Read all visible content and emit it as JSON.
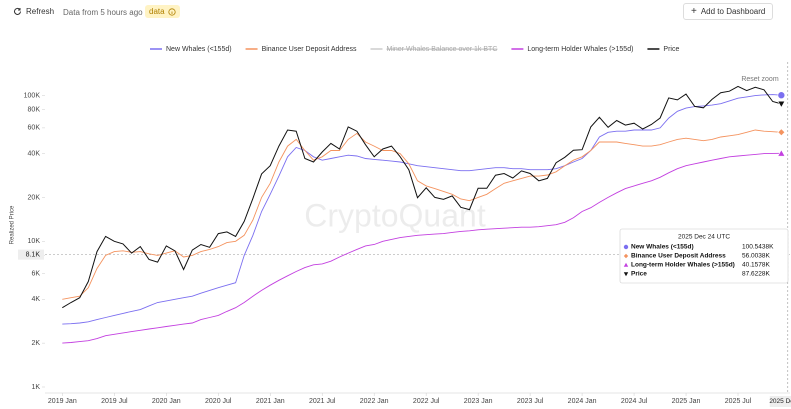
{
  "header": {
    "refresh": "Refresh",
    "status": "Data from 5 hours ago",
    "badge": "data",
    "button": "Add to Dashboard"
  },
  "chart_data": {
    "type": "line",
    "watermark": "CryptoQuant",
    "y_label": "Realized Price",
    "reset_zoom": "Reset zoom",
    "log_scale": true,
    "grid": false,
    "legend": "top",
    "x": [
      "2019 Jan",
      "2019 Feb",
      "2019 Mar",
      "2019 Apr",
      "2019 May",
      "2019 Jun",
      "2019 Jul",
      "2019 Aug",
      "2019 Sep",
      "2019 Oct",
      "2019 Nov",
      "2019 Dec",
      "2020 Jan",
      "2020 Feb",
      "2020 Mar",
      "2020 Apr",
      "2020 May",
      "2020 Jun",
      "2020 Jul",
      "2020 Aug",
      "2020 Sep",
      "2020 Oct",
      "2020 Nov",
      "2020 Dec",
      "2021 Jan",
      "2021 Feb",
      "2021 Mar",
      "2021 Apr",
      "2021 May",
      "2021 Jun",
      "2021 Jul",
      "2021 Aug",
      "2021 Sep",
      "2021 Oct",
      "2021 Nov",
      "2021 Dec",
      "2022 Jan",
      "2022 Feb",
      "2022 Mar",
      "2022 Apr",
      "2022 May",
      "2022 Jun",
      "2022 Jul",
      "2022 Aug",
      "2022 Sep",
      "2022 Oct",
      "2022 Nov",
      "2022 Dec",
      "2023 Jan",
      "2023 Feb",
      "2023 Mar",
      "2023 Apr",
      "2023 May",
      "2023 Jun",
      "2023 Jul",
      "2023 Aug",
      "2023 Sep",
      "2023 Oct",
      "2023 Nov",
      "2023 Dec",
      "2024 Jan",
      "2024 Feb",
      "2024 Mar",
      "2024 Apr",
      "2024 May",
      "2024 Jun",
      "2024 Jul",
      "2024 Aug",
      "2024 Sep",
      "2024 Oct",
      "2024 Nov",
      "2024 Dec",
      "2025 Jan",
      "2025 Feb",
      "2025 Mar",
      "2025 Apr",
      "2025 May",
      "2025 Jun",
      "2025 Jul",
      "2025 Aug",
      "2025 Sep",
      "2025 Oct",
      "2025 Nov",
      "2025 Dec"
    ],
    "xlim": [
      "2018 Nov",
      "2026 Jan"
    ],
    "xticks": [
      "2019 Jan",
      "2019 Jul",
      "2020 Jan",
      "2020 Jul",
      "2021 Jan",
      "2021 Jul",
      "2022 Jan",
      "2022 Jul",
      "2023 Jan",
      "2023 Jul",
      "2024 Jan",
      "2024 Jul",
      "2025 Jan",
      "2025 Jul"
    ],
    "ylim": [
      1000,
      170000
    ],
    "yticks": [
      {
        "value": 1000,
        "label": "1K"
      },
      {
        "value": 2000,
        "label": "2K"
      },
      {
        "value": 4000,
        "label": "4K"
      },
      {
        "value": 6000,
        "label": "6K"
      },
      {
        "value": 8000,
        "label": "8K"
      },
      {
        "value": 10000,
        "label": "10K"
      },
      {
        "value": 20000,
        "label": "20K"
      },
      {
        "value": 40000,
        "label": "40K"
      },
      {
        "value": 60000,
        "label": "60K"
      },
      {
        "value": 80000,
        "label": "80K"
      },
      {
        "value": 100000,
        "label": "100K"
      }
    ],
    "crosshair": {
      "y": {
        "value": 8100,
        "label": "8.1K"
      },
      "x": "2025 Dec 24"
    },
    "series": [
      {
        "name": "New Whales (<155d)",
        "color": "#7b6ff0",
        "marker": "circle",
        "values": [
          2700,
          2720,
          2750,
          2800,
          2900,
          3000,
          3100,
          3200,
          3300,
          3400,
          3600,
          3800,
          3900,
          4000,
          4100,
          4200,
          4400,
          4600,
          4800,
          5000,
          5200,
          8000,
          11000,
          16000,
          21000,
          28000,
          38000,
          44000,
          42000,
          38000,
          36000,
          37000,
          38000,
          39000,
          38500,
          37000,
          36500,
          36000,
          35500,
          35000,
          34000,
          33000,
          32500,
          32000,
          31500,
          31000,
          30500,
          30500,
          31000,
          31500,
          32000,
          32000,
          31500,
          31500,
          31000,
          31000,
          31000,
          31500,
          33000,
          35000,
          37000,
          42000,
          52000,
          56000,
          57000,
          57000,
          58000,
          58000,
          58000,
          60000,
          70000,
          78000,
          82000,
          84000,
          85000,
          86000,
          88000,
          92000,
          96000,
          98000,
          100000,
          101000,
          101500,
          100543.8
        ]
      },
      {
        "name": "Binance User Deposit Address",
        "color": "#f4935f",
        "marker": "diamond",
        "values": [
          4000,
          4100,
          4200,
          4800,
          6500,
          8000,
          8500,
          8600,
          8400,
          8500,
          8200,
          8000,
          8300,
          8600,
          7800,
          8000,
          8500,
          8800,
          9200,
          9800,
          10000,
          11000,
          14000,
          20000,
          25000,
          35000,
          45000,
          50000,
          42000,
          36000,
          38000,
          42000,
          42000,
          50000,
          55000,
          48000,
          45000,
          42000,
          42000,
          40000,
          34000,
          26000,
          24000,
          23000,
          22000,
          21000,
          19500,
          19000,
          20000,
          21000,
          23000,
          25000,
          26000,
          27000,
          28000,
          28000,
          28500,
          30000,
          33000,
          36000,
          38000,
          42000,
          48000,
          48000,
          48000,
          47000,
          46000,
          45000,
          45000,
          46000,
          48000,
          50000,
          51000,
          50000,
          49000,
          50000,
          52000,
          53000,
          54000,
          56000,
          58000,
          57000,
          56500,
          56003.8
        ]
      },
      {
        "name": "Miner Whales Balance over 1k BTC",
        "color": "#aaaaaa",
        "visible": false,
        "values": [
          null,
          null,
          null,
          null,
          null,
          null,
          null,
          null,
          null,
          null,
          null,
          null,
          null,
          null,
          null,
          null,
          null,
          null,
          null,
          null,
          null,
          null,
          null,
          null,
          null,
          null,
          null,
          null,
          null,
          null,
          null,
          null,
          null,
          null,
          null,
          null,
          null,
          null,
          null,
          null,
          null,
          null,
          null,
          null,
          null,
          null,
          null,
          null,
          null,
          null,
          null,
          null,
          null,
          null,
          null,
          null,
          null,
          null,
          null,
          null,
          null,
          null,
          null,
          null,
          null,
          null,
          null,
          null,
          null,
          null,
          null,
          null,
          null,
          null,
          null,
          null,
          null,
          null,
          null,
          null,
          null,
          null,
          null,
          null
        ]
      },
      {
        "name": "Long-term Holder Whales (>155d)",
        "color": "#c340e0",
        "marker": "triangle-up",
        "values": [
          2000,
          2020,
          2050,
          2080,
          2150,
          2250,
          2300,
          2350,
          2400,
          2450,
          2500,
          2550,
          2600,
          2650,
          2700,
          2750,
          2900,
          3000,
          3100,
          3300,
          3500,
          3800,
          4200,
          4600,
          5000,
          5400,
          5800,
          6200,
          6600,
          6900,
          7000,
          7300,
          7800,
          8300,
          8800,
          9300,
          9500,
          10000,
          10300,
          10600,
          10800,
          11000,
          11100,
          11200,
          11300,
          11500,
          11700,
          11800,
          12000,
          12100,
          12200,
          12300,
          12400,
          12500,
          12500,
          12600,
          12800,
          13000,
          13500,
          14500,
          16000,
          17000,
          18500,
          20000,
          21500,
          23000,
          24000,
          25000,
          26000,
          27500,
          29500,
          31500,
          33000,
          34000,
          35000,
          36000,
          37000,
          38000,
          38500,
          39000,
          39500,
          40000,
          40100,
          40157.8
        ]
      },
      {
        "name": "Price",
        "color": "#111111",
        "marker": "triangle-down",
        "values": [
          3500,
          3800,
          4100,
          5300,
          8500,
          10800,
          10000,
          9600,
          8300,
          9200,
          7500,
          7200,
          9300,
          8600,
          6400,
          8700,
          9500,
          9100,
          11300,
          11600,
          10800,
          13700,
          19700,
          29000,
          33000,
          45000,
          58000,
          57000,
          37000,
          35000,
          41000,
          47000,
          43000,
          61000,
          57000,
          46000,
          38000,
          43000,
          45000,
          38000,
          31000,
          19900,
          23300,
          20000,
          19400,
          20500,
          17100,
          16500,
          23100,
          23100,
          28400,
          29200,
          27200,
          30400,
          29200,
          26000,
          27000,
          34600,
          37700,
          42200,
          42500,
          61000,
          71000,
          60600,
          67500,
          62700,
          64600,
          59000,
          63300,
          70200,
          96400,
          93400,
          102400,
          84300,
          82500,
          94200,
          104600,
          107100,
          115700,
          108200,
          114000,
          109500,
          91000,
          87622.8
        ]
      }
    ],
    "tooltip": {
      "title": "2025 Dec 24 UTC",
      "items": [
        {
          "name": "New Whales (<155d)",
          "value": 100543.8,
          "value_label": "100.5438K"
        },
        {
          "name": "Binance User Deposit Address",
          "value": 56003.8,
          "value_label": "56.0038K"
        },
        {
          "name": "Long-term Holder Whales (>155d)",
          "value": 40157.8,
          "value_label": "40.1578K"
        },
        {
          "name": "Price",
          "value": 87622.8,
          "value_label": "87.6228K"
        }
      ]
    }
  }
}
